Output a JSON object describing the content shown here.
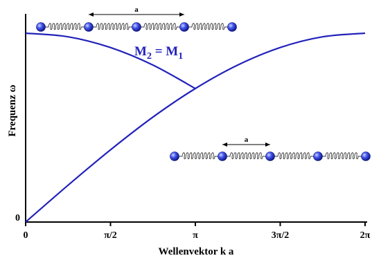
{
  "chart_data": {
    "type": "line",
    "xlabel": "Wellenvektor k a",
    "ylabel": "Frequenz ω",
    "x_ticks": [
      {
        "value": 0,
        "label": "0"
      },
      {
        "value": 1.5708,
        "label": "π/2"
      },
      {
        "value": 3.1416,
        "label": "π"
      },
      {
        "value": 4.7124,
        "label": "3π/2"
      },
      {
        "value": 6.2832,
        "label": "2π"
      }
    ],
    "y_ticks": [
      {
        "value": 0,
        "label": "0"
      }
    ],
    "xlim": [
      0,
      6.2832
    ],
    "ylim": [
      0,
      2
    ],
    "annotation": {
      "main": "M",
      "sub2": "2",
      "eq": " = M",
      "sub1": "1"
    },
    "series": [
      {
        "x": [
          0,
          0.785,
          1.571,
          2.356,
          3.1416
        ],
        "y": [
          2.0,
          1.962,
          1.848,
          1.663,
          1.414
        ]
      },
      {
        "x": [
          0,
          0.785,
          1.571,
          2.356,
          3.1416,
          3.927,
          4.712,
          5.498,
          6.2832
        ],
        "y": [
          0,
          0.39,
          0.765,
          1.111,
          1.414,
          1.663,
          1.848,
          1.962,
          2.0
        ]
      }
    ],
    "grid": false,
    "colors": {
      "curve": "#2222bb",
      "axes": "#000000",
      "atom": "#3344dd"
    }
  },
  "insets": [
    {
      "label": "a",
      "atoms": 5,
      "springs": 4
    },
    {
      "label": "a",
      "atoms": 5,
      "springs": 4
    }
  ]
}
